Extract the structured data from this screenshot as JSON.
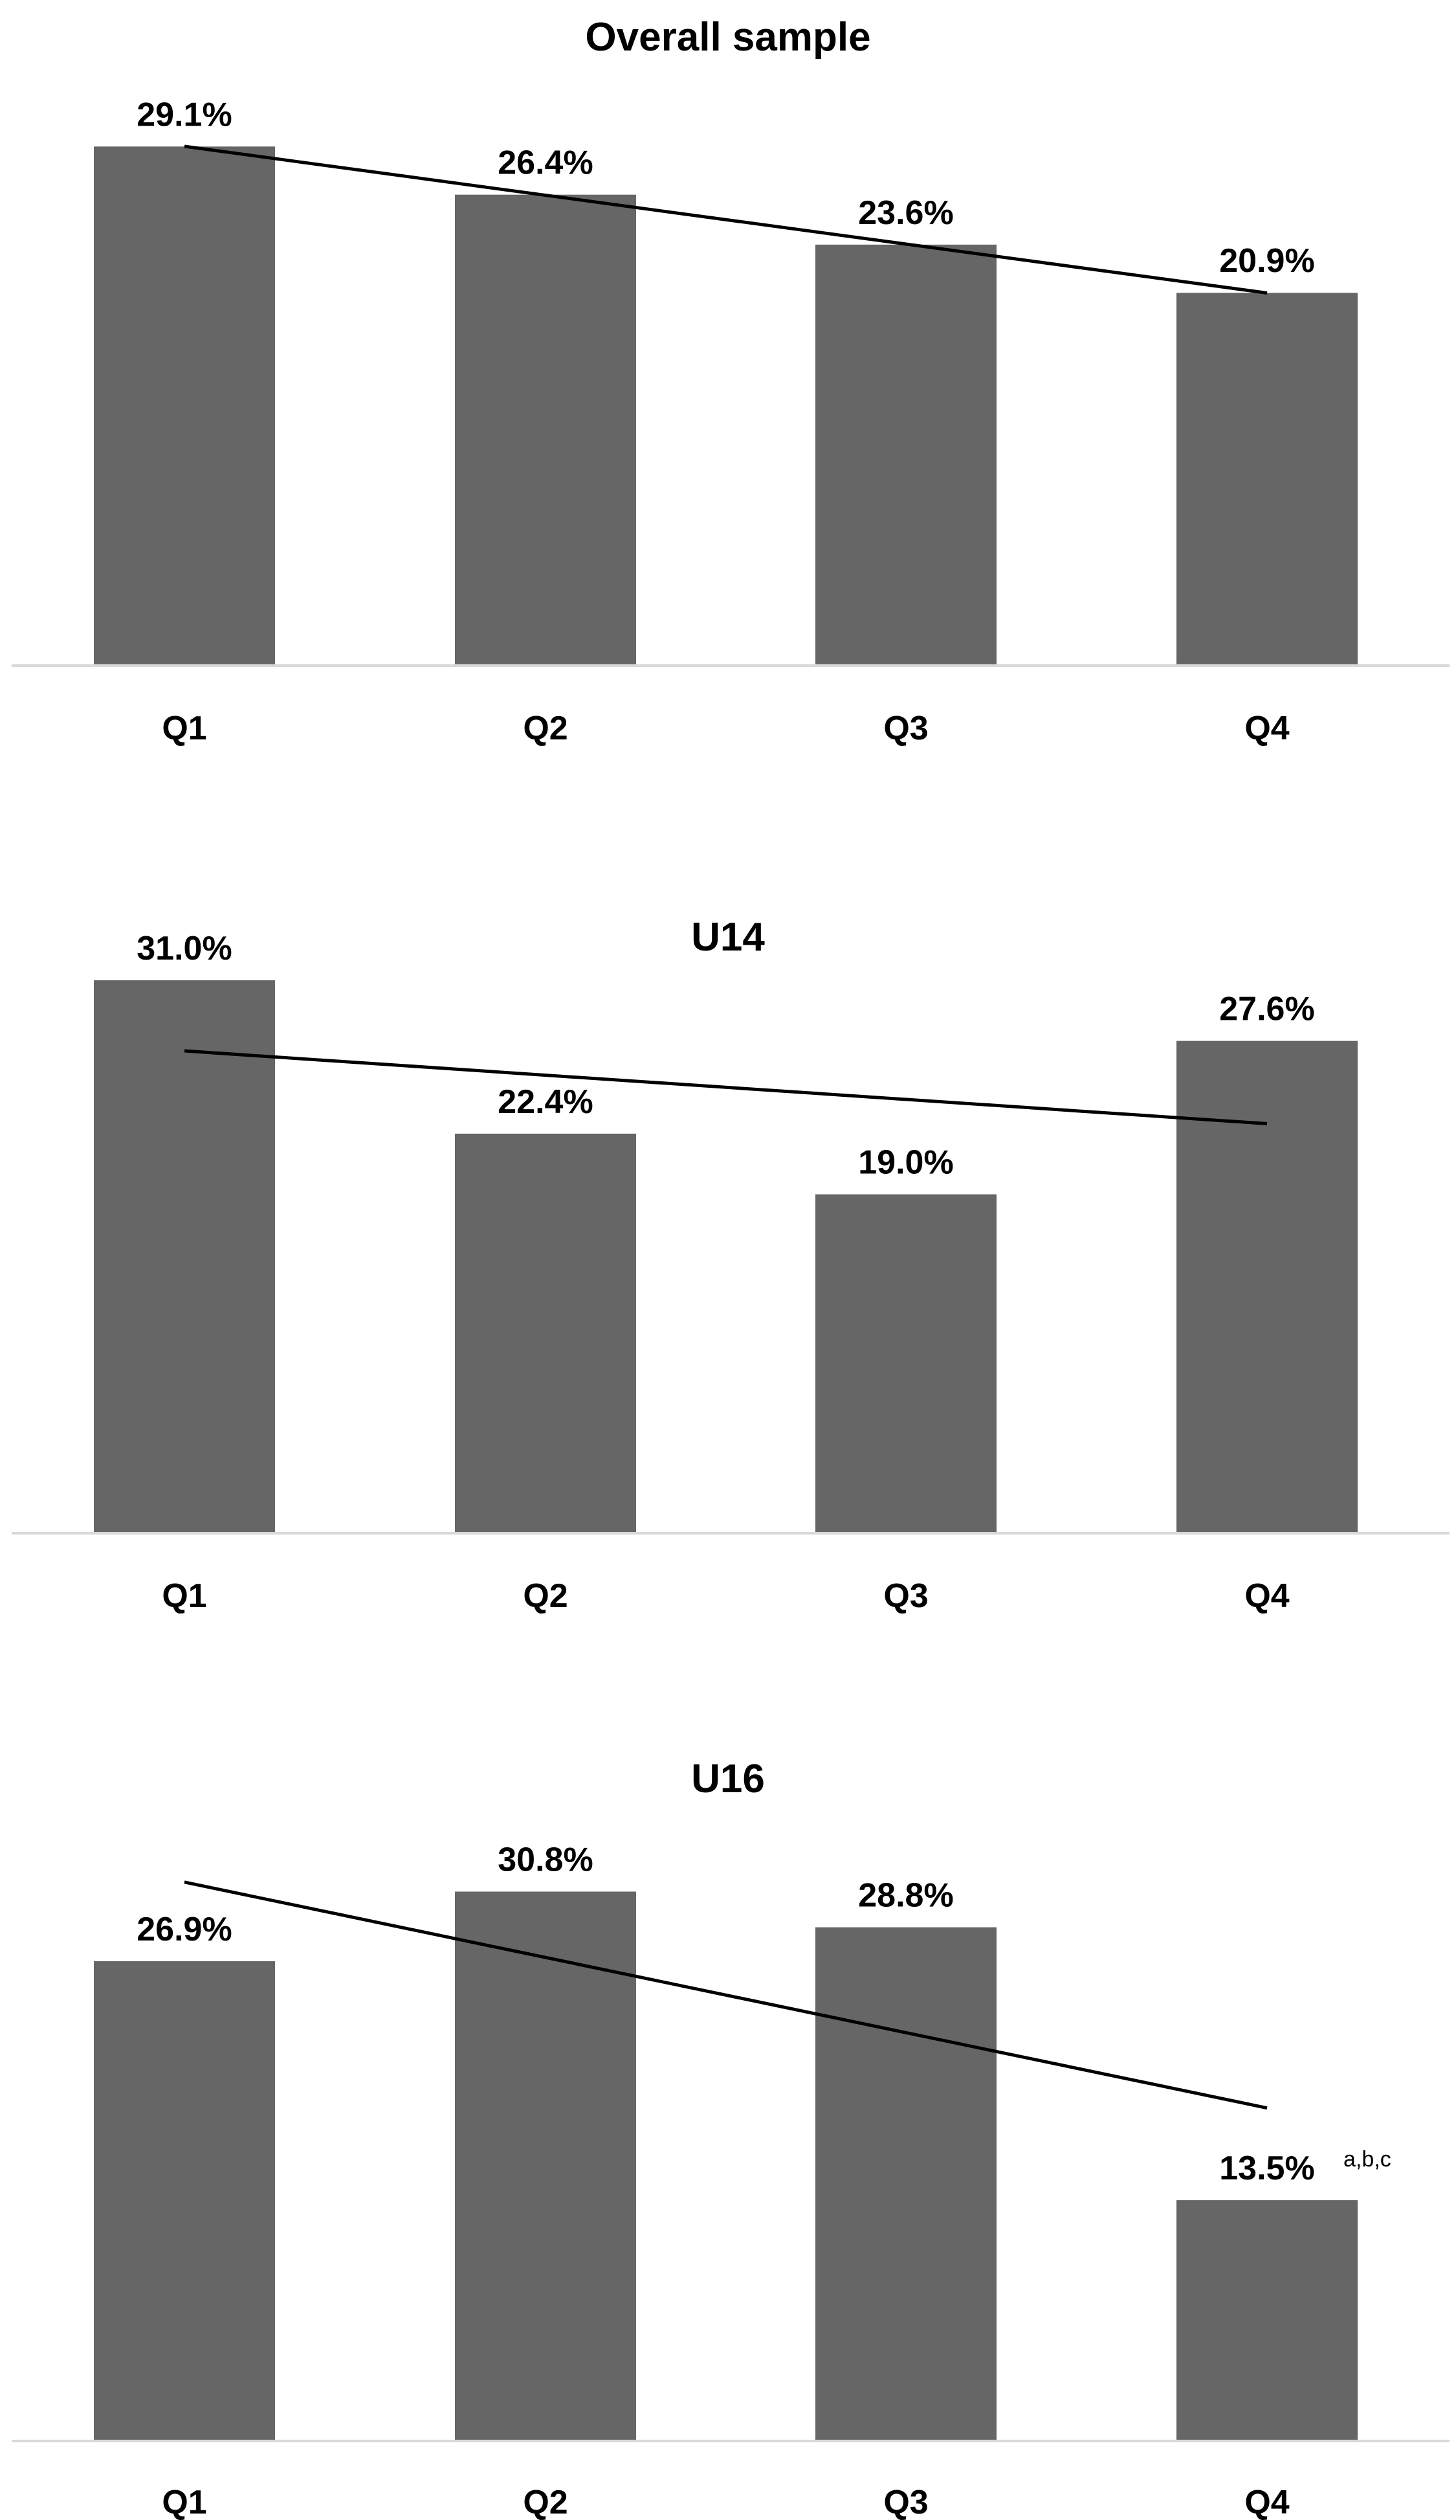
{
  "colors": {
    "bar": "#666666",
    "trendline": "#000000",
    "axis": "#d9d9d9",
    "text": "#000000"
  },
  "chart_data": [
    {
      "type": "bar",
      "title": "Overall sample",
      "categories": [
        "Q1",
        "Q2",
        "Q3",
        "Q4"
      ],
      "values": [
        29.1,
        26.4,
        23.6,
        20.9
      ],
      "value_labels": [
        "29.1%",
        "26.4%",
        "23.6%",
        "20.9%"
      ],
      "value_notes": [
        "",
        "",
        "",
        ""
      ],
      "trendline": "linear",
      "ylim": [
        0,
        32
      ],
      "grid": false,
      "legend": "none",
      "xlabel": "",
      "ylabel": ""
    },
    {
      "type": "bar",
      "title": "U14",
      "categories": [
        "Q1",
        "Q2",
        "Q3",
        "Q4"
      ],
      "values": [
        31.0,
        22.4,
        19.0,
        27.6
      ],
      "value_labels": [
        "31.0%",
        "22.4%",
        "19.0%",
        "27.6%"
      ],
      "value_notes": [
        "",
        "",
        "",
        ""
      ],
      "trendline": "linear",
      "ylim": [
        0,
        32
      ],
      "grid": false,
      "legend": "none",
      "xlabel": "",
      "ylabel": ""
    },
    {
      "type": "bar",
      "title": "U16",
      "categories": [
        "Q1",
        "Q2",
        "Q3",
        "Q4"
      ],
      "values": [
        26.9,
        30.8,
        28.8,
        13.5
      ],
      "value_labels": [
        "26.9%",
        "30.8%",
        "28.8%",
        "13.5%"
      ],
      "value_notes": [
        "",
        "",
        "",
        "a,b,c"
      ],
      "trendline": "linear",
      "ylim": [
        0,
        32
      ],
      "grid": false,
      "legend": "none",
      "xlabel": "",
      "ylabel": ""
    }
  ]
}
